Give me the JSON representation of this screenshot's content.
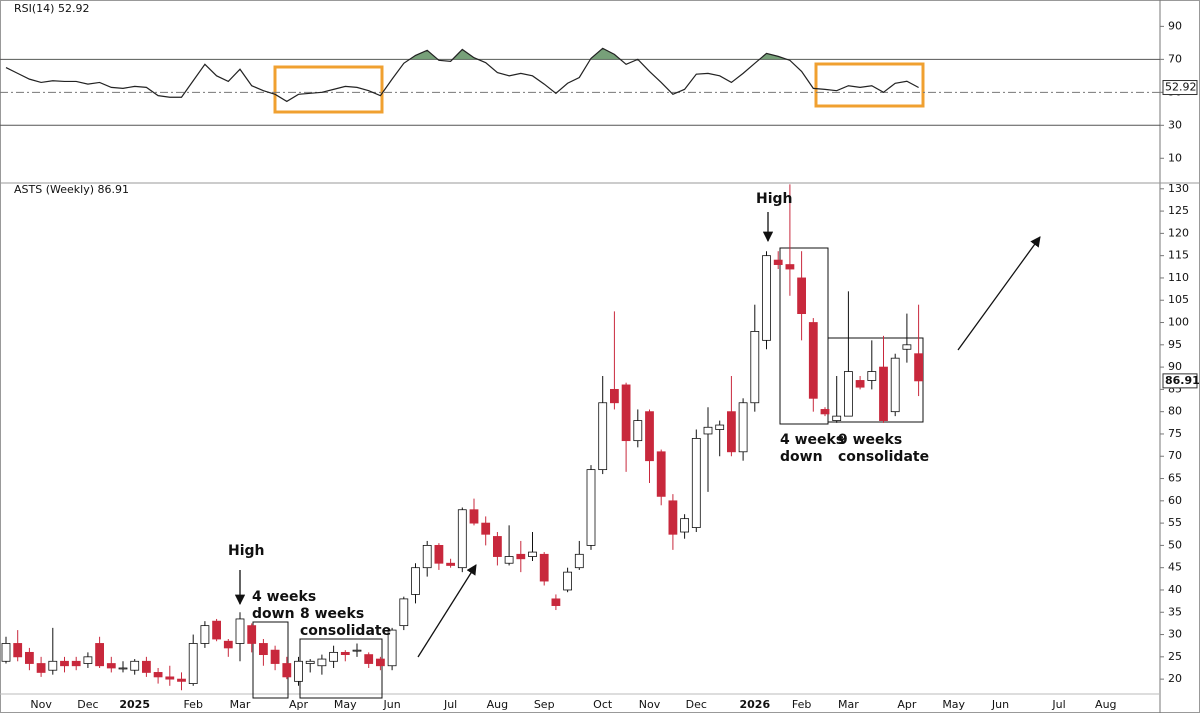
{
  "chart_data": [
    {
      "type": "line",
      "title": "RSI(14) 52.92",
      "color": "#222222",
      "fill_color": "#5f8f62",
      "ylim": [
        -5,
        106
      ],
      "yticks": [
        90,
        70,
        50,
        30,
        10
      ],
      "levels": [
        70,
        30
      ],
      "midline": 50,
      "values": [
        65,
        61.5,
        58,
        56,
        57,
        56.6,
        56.6,
        55,
        56,
        53,
        52.4,
        53.6,
        53,
        48,
        47,
        47,
        57,
        67,
        60,
        56.6,
        64,
        54,
        51,
        48.8,
        44.5,
        48.8,
        49.4,
        50,
        51.8,
        53.6,
        53,
        51,
        48,
        58,
        67.6,
        72.4,
        75.5,
        69.4,
        68.8,
        76,
        71,
        68,
        62,
        60,
        61.5,
        60,
        55,
        49.4,
        55.5,
        59,
        70.6,
        76.7,
        73,
        67,
        70,
        62.7,
        56,
        48.8,
        51.8,
        61,
        61.5,
        60,
        56,
        61.5,
        67.6,
        73.6,
        71.8,
        69.4,
        62.7,
        52.4,
        51.8,
        51,
        54,
        53,
        54,
        50,
        55.5,
        56.7,
        52.92,
        null,
        null,
        null,
        null,
        null,
        null,
        null,
        null,
        null,
        null,
        null,
        null,
        null,
        null,
        null,
        null,
        null,
        null,
        null
      ]
    },
    {
      "type": "candlestick",
      "title": "ASTS (Weekly) 86.91",
      "up_color": "#ffffff",
      "down_color": "#c8283c",
      "ylim": [
        12.4,
        131.3
      ],
      "yticks": [
        20,
        25,
        30,
        35,
        40,
        45,
        50,
        55,
        60,
        65,
        70,
        75,
        80,
        85,
        90,
        95,
        100,
        105,
        110,
        115,
        120,
        125,
        130
      ],
      "categories": [
        null,
        null,
        null,
        "Nov",
        null,
        null,
        null,
        "Dec",
        null,
        null,
        null,
        "2025",
        null,
        null,
        null,
        null,
        "Feb",
        null,
        null,
        null,
        "Mar",
        null,
        null,
        null,
        null,
        "Apr",
        null,
        null,
        null,
        "May",
        null,
        null,
        null,
        "Jun",
        null,
        null,
        null,
        null,
        "Jul",
        null,
        null,
        null,
        "Aug",
        null,
        null,
        null,
        "Sep",
        null,
        null,
        null,
        null,
        "Oct",
        null,
        null,
        null,
        "Nov",
        null,
        null,
        null,
        "Dec",
        null,
        null,
        null,
        null,
        "2026",
        null,
        null,
        null,
        "Feb",
        null,
        null,
        null,
        "Mar",
        null,
        null,
        null,
        null,
        "Apr",
        null,
        null,
        null,
        "May",
        null,
        null,
        null,
        "Jun",
        null,
        null,
        null,
        null,
        "Jul",
        null,
        null,
        null,
        "Aug",
        null,
        null,
        null
      ],
      "open": [
        24,
        28,
        26,
        23.5,
        22,
        24,
        24,
        23.5,
        28,
        23.5,
        22.5,
        22,
        24,
        21.5,
        20.5,
        20,
        19,
        28,
        33,
        28.5,
        28,
        32,
        28,
        26.5,
        23.5,
        19.5,
        23.5,
        23,
        24,
        26,
        26.5,
        25.5,
        24.5,
        23,
        32,
        39,
        45,
        50,
        46,
        45,
        58,
        55,
        52,
        46,
        48,
        47.5,
        48,
        38,
        40,
        45,
        50,
        67,
        85,
        86,
        73.5,
        80,
        71,
        60,
        53,
        54,
        75,
        76,
        80,
        71,
        82,
        96,
        114,
        113,
        110,
        100,
        80.5,
        78,
        79,
        87,
        87,
        90,
        80,
        94,
        93,
        null,
        null,
        null,
        null,
        null,
        null,
        null,
        null,
        null,
        null,
        null,
        null,
        null,
        null,
        null,
        null,
        null,
        null,
        null
      ],
      "high": [
        29.5,
        31,
        27,
        25,
        31.5,
        25,
        25,
        26,
        29.5,
        25,
        24,
        24.5,
        25,
        22.5,
        23,
        21.5,
        30,
        33,
        33.5,
        29,
        35,
        32.5,
        29,
        27.5,
        25,
        25,
        24.5,
        25.5,
        27.5,
        26.5,
        28,
        26,
        25,
        31.5,
        38.5,
        46,
        51,
        50.5,
        47,
        58.5,
        60.5,
        56.5,
        53,
        54.5,
        51,
        53,
        48.5,
        39,
        45,
        51,
        68,
        88,
        102.5,
        86.5,
        80.5,
        80.5,
        71.5,
        61.5,
        57,
        76,
        81,
        78,
        88,
        83,
        104,
        116,
        116,
        131,
        116,
        101,
        81,
        88,
        107,
        88,
        96,
        97,
        93,
        102,
        104,
        null,
        null,
        null,
        null,
        null,
        null,
        null,
        null,
        null,
        null,
        null,
        null,
        null,
        null,
        null,
        null,
        null,
        null,
        null
      ],
      "low": [
        23.5,
        24,
        22,
        20.5,
        21,
        21.5,
        22,
        22.5,
        22.5,
        21.5,
        21.5,
        21,
        20.5,
        19,
        18.5,
        17.5,
        18.5,
        27,
        28.5,
        25,
        24,
        26,
        23,
        22,
        20,
        18.5,
        21.5,
        21,
        22.5,
        24,
        25,
        22.5,
        22,
        22,
        31,
        37,
        43,
        44.5,
        45,
        44,
        54.5,
        50,
        45.5,
        45.5,
        44,
        46.5,
        41,
        35.5,
        39.5,
        44.5,
        49,
        66,
        80.5,
        66.5,
        72,
        64,
        59,
        49,
        51.5,
        53,
        62,
        70,
        70,
        69,
        80,
        94,
        112,
        106,
        96,
        80,
        79,
        77.5,
        79,
        85,
        85,
        77.5,
        79,
        91,
        83.5,
        null,
        null,
        null,
        null,
        null,
        null,
        null,
        null,
        null,
        null,
        null,
        null,
        null,
        null,
        null,
        null,
        null,
        null,
        null
      ],
      "close": [
        28,
        25,
        23.5,
        21.5,
        24,
        23,
        23,
        25,
        23,
        22.5,
        22.5,
        24,
        21.5,
        20.5,
        20,
        19.5,
        28,
        32,
        29,
        27,
        33.5,
        28,
        25.5,
        23.5,
        20.5,
        24,
        24,
        24.5,
        26,
        25.5,
        26.5,
        23.5,
        23,
        31,
        38,
        45,
        50,
        46,
        45.5,
        58,
        55,
        52.5,
        47.5,
        47.5,
        47,
        48.5,
        42,
        36.5,
        44,
        48,
        67,
        82,
        82,
        73.5,
        78,
        69,
        61,
        52.5,
        56,
        74,
        76.5,
        77,
        71,
        82,
        98,
        115,
        113,
        112,
        102,
        83,
        79.5,
        79,
        89,
        85.5,
        89,
        78,
        92,
        95,
        86.91,
        null,
        null,
        null,
        null,
        null,
        null,
        null,
        null,
        null,
        null,
        null,
        null,
        null,
        null,
        null,
        null,
        null,
        null,
        null
      ],
      "annotations": [
        {
          "text": [
            "High"
          ]
        },
        {
          "text": [
            "4 weeks",
            "down"
          ]
        },
        {
          "text": [
            "8 weeks",
            "consolidate"
          ]
        },
        {
          "text": [
            "High"
          ]
        },
        {
          "text": [
            "4 weeks",
            "down"
          ]
        },
        {
          "text": [
            "9 weeks",
            "consolidate"
          ]
        }
      ]
    }
  ]
}
